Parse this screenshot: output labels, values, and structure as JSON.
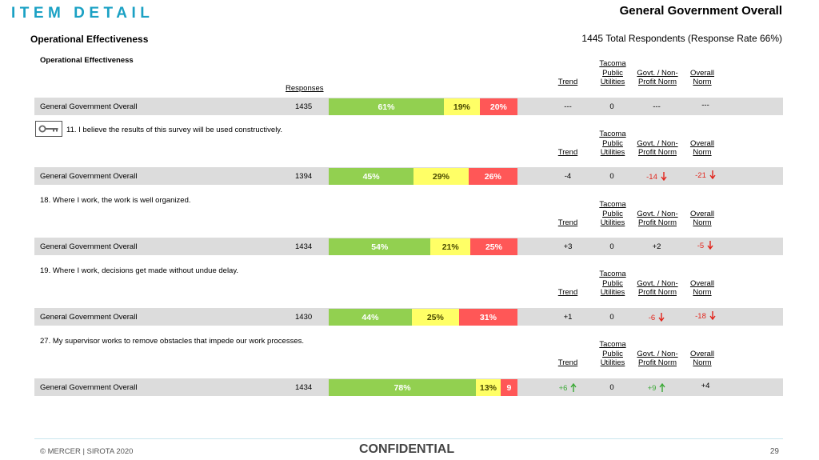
{
  "header": {
    "brand": "ITEM DETAIL",
    "title": "General Government Overall",
    "subtitle_left": "Operational Effectiveness",
    "subtitle_right": "1445 Total Respondents (Response Rate  66%)"
  },
  "section": {
    "label": "Operational Effectiveness",
    "responses_header": "Responses"
  },
  "columns": {
    "trend": "Trend",
    "tacoma": "Tacoma Public Utilities",
    "govt": "Govt. / Non-Profit Norm",
    "overall": "Overall Norm"
  },
  "colors": {
    "favorable": "#92d050",
    "neutral": "#ffff66",
    "unfavorable": "#ff5757",
    "negative_text": "#e2231a",
    "positive_text": "#3aa935",
    "brand": "#1ba1c4"
  },
  "icons": {
    "key": "key-icon",
    "down": "arrow-down-icon",
    "up": "arrow-up-icon"
  },
  "items": [
    {
      "question": "",
      "row": {
        "label": "General Government Overall",
        "responses": "1435",
        "favorable": 61,
        "neutral": 19,
        "unfavorable": 20,
        "fav_label": "61%",
        "neu_label": "19%",
        "unf_label": "20%",
        "trend": "---",
        "tacoma": "0",
        "govt": "---",
        "overall": "---"
      }
    },
    {
      "question": "11. I believe the results of this survey will be used constructively.",
      "row": {
        "label": "General Government Overall",
        "responses": "1394",
        "favorable": 45,
        "neutral": 29,
        "unfavorable": 26,
        "fav_label": "45%",
        "neu_label": "29%",
        "unf_label": "26%",
        "trend": "-4",
        "tacoma": "0",
        "govt": "-14",
        "overall": "-21"
      }
    },
    {
      "question": "18. Where I work, the work is well organized.",
      "row": {
        "label": "General Government Overall",
        "responses": "1434",
        "favorable": 54,
        "neutral": 21,
        "unfavorable": 25,
        "fav_label": "54%",
        "neu_label": "21%",
        "unf_label": "25%",
        "trend": "+3",
        "tacoma": "0",
        "govt": "+2",
        "overall": "-5"
      }
    },
    {
      "question": "19. Where I work, decisions get made without undue delay.",
      "row": {
        "label": "General Government Overall",
        "responses": "1430",
        "favorable": 44,
        "neutral": 25,
        "unfavorable": 31,
        "fav_label": "44%",
        "neu_label": "25%",
        "unf_label": "31%",
        "trend": "+1",
        "tacoma": "0",
        "govt": "-6",
        "overall": "-18"
      }
    },
    {
      "question": "27. My supervisor works to remove obstacles that impede our work processes.",
      "row": {
        "label": "General Government Overall",
        "responses": "1434",
        "favorable": 78,
        "neutral": 13,
        "unfavorable": 9,
        "fav_label": "78%",
        "neu_label": "13%",
        "unf_label": "9",
        "trend": "+6",
        "tacoma": "0",
        "govt": "+9",
        "overall": "+4"
      }
    }
  ],
  "footer": {
    "copyright": "© MERCER | SIROTA 2020",
    "confidential": "CONFIDENTIAL",
    "page": "29"
  }
}
